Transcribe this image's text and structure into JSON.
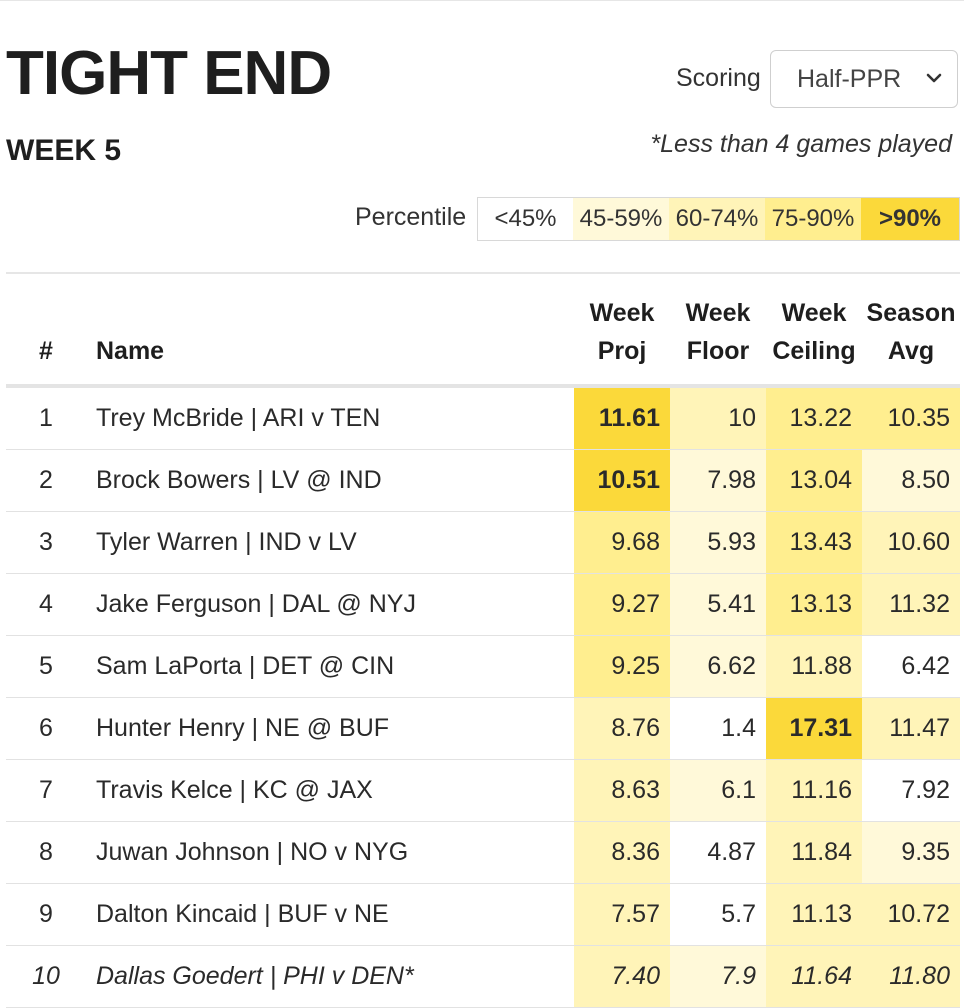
{
  "header": {
    "title": "TIGHT END",
    "week": "WEEK 5",
    "scoring_label": "Scoring",
    "scoring_value": "Half-PPR",
    "note": "*Less than 4 games played"
  },
  "percentile": {
    "label": "Percentile",
    "buckets": [
      {
        "label": "<45%",
        "color": "#ffffff"
      },
      {
        "label": "45-59%",
        "color": "#fff9d9"
      },
      {
        "label": "60-74%",
        "color": "#fff4b8"
      },
      {
        "label": "75-90%",
        "color": "#ffee8f"
      },
      {
        "label": ">90%",
        "color": "#fbd93a"
      }
    ]
  },
  "table": {
    "headers": {
      "rank": "#",
      "name": "Name",
      "proj_1": "Week",
      "proj_2": "Proj",
      "floor_1": "Week",
      "floor_2": "Floor",
      "ceiling_1": "Week",
      "ceiling_2": "Ceiling",
      "avg_1": "Season",
      "avg_2": "Avg"
    },
    "rows": [
      {
        "rank": "1",
        "name": "Trey McBride | ARI v TEN",
        "proj": "11.61",
        "floor": "10",
        "ceiling": "13.22",
        "avg": "10.35",
        "tiers": [
          4,
          2,
          3,
          3
        ]
      },
      {
        "rank": "2",
        "name": "Brock Bowers | LV @ IND",
        "proj": "10.51",
        "floor": "7.98",
        "ceiling": "13.04",
        "avg": "8.50",
        "tiers": [
          4,
          1,
          3,
          1
        ]
      },
      {
        "rank": "3",
        "name": "Tyler Warren | IND v LV",
        "proj": "9.68",
        "floor": "5.93",
        "ceiling": "13.43",
        "avg": "10.60",
        "tiers": [
          3,
          1,
          3,
          2
        ]
      },
      {
        "rank": "4",
        "name": "Jake Ferguson | DAL @ NYJ",
        "proj": "9.27",
        "floor": "5.41",
        "ceiling": "13.13",
        "avg": "11.32",
        "tiers": [
          3,
          1,
          3,
          2
        ]
      },
      {
        "rank": "5",
        "name": "Sam LaPorta | DET @ CIN",
        "proj": "9.25",
        "floor": "6.62",
        "ceiling": "11.88",
        "avg": "6.42",
        "tiers": [
          3,
          1,
          2,
          0
        ]
      },
      {
        "rank": "6",
        "name": "Hunter Henry | NE @ BUF",
        "proj": "8.76",
        "floor": "1.4",
        "ceiling": "17.31",
        "avg": "11.47",
        "tiers": [
          2,
          0,
          4,
          2
        ]
      },
      {
        "rank": "7",
        "name": "Travis Kelce | KC @ JAX",
        "proj": "8.63",
        "floor": "6.1",
        "ceiling": "11.16",
        "avg": "7.92",
        "tiers": [
          2,
          1,
          2,
          0
        ]
      },
      {
        "rank": "8",
        "name": "Juwan Johnson | NO v NYG",
        "proj": "8.36",
        "floor": "4.87",
        "ceiling": "11.84",
        "avg": "9.35",
        "tiers": [
          2,
          0,
          2,
          1
        ]
      },
      {
        "rank": "9",
        "name": "Dalton Kincaid | BUF v NE",
        "proj": "7.57",
        "floor": "5.7",
        "ceiling": "11.13",
        "avg": "10.72",
        "tiers": [
          2,
          0,
          2,
          2
        ]
      },
      {
        "rank": "10",
        "name": "Dallas Goedert | PHI v DEN*",
        "proj": "7.40",
        "floor": "7.9",
        "ceiling": "11.64",
        "avg": "11.80",
        "tiers": [
          2,
          1,
          2,
          2
        ],
        "italic": true
      }
    ]
  }
}
